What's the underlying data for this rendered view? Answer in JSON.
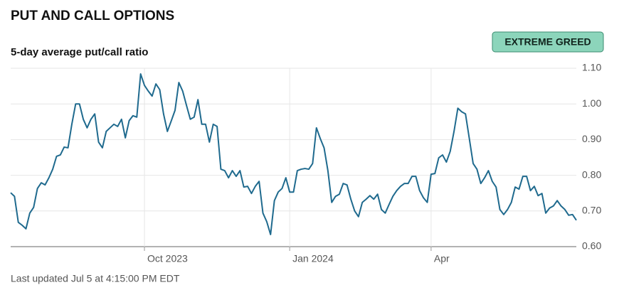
{
  "chart_data": {
    "type": "line",
    "title": "PUT AND CALL OPTIONS",
    "subtitle": "5-day average put/call ratio",
    "badge": "EXTREME GREED",
    "footnote": "Last updated Jul 5 at 4:15:00 PM EDT",
    "color": "#1f6a8e",
    "grid": true,
    "xlim": [
      0,
      148
    ],
    "xticks": [
      {
        "value": 35,
        "label": "Oct 2023"
      },
      {
        "value": 73,
        "label": "Jan 2024"
      },
      {
        "value": 110,
        "label": "Apr"
      }
    ],
    "ylim": [
      0.6,
      1.1
    ],
    "yticks": [
      {
        "value": 0.6,
        "label": "0.60"
      },
      {
        "value": 0.7,
        "label": "0.70"
      },
      {
        "value": 0.8,
        "label": "0.80"
      },
      {
        "value": 0.9,
        "label": "0.90"
      },
      {
        "value": 1.0,
        "label": "1.00"
      },
      {
        "value": 1.1,
        "label": "1.10"
      }
    ],
    "values": [
      0.751,
      0.741,
      0.668,
      0.66,
      0.65,
      0.694,
      0.71,
      0.763,
      0.779,
      0.773,
      0.793,
      0.817,
      0.853,
      0.857,
      0.879,
      0.877,
      0.943,
      1.0,
      1.0,
      0.957,
      0.933,
      0.957,
      0.972,
      0.893,
      0.877,
      0.923,
      0.933,
      0.943,
      0.937,
      0.957,
      0.905,
      0.953,
      0.967,
      0.963,
      1.084,
      1.052,
      1.036,
      1.022,
      1.056,
      1.04,
      0.972,
      0.923,
      0.952,
      0.982,
      1.06,
      1.036,
      0.996,
      0.957,
      0.963,
      1.012,
      0.943,
      0.943,
      0.893,
      0.943,
      0.937,
      0.817,
      0.813,
      0.793,
      0.813,
      0.797,
      0.813,
      0.767,
      0.769,
      0.749,
      0.769,
      0.783,
      0.694,
      0.67,
      0.634,
      0.729,
      0.753,
      0.763,
      0.793,
      0.753,
      0.753,
      0.813,
      0.817,
      0.819,
      0.817,
      0.833,
      0.933,
      0.903,
      0.877,
      0.813,
      0.724,
      0.741,
      0.747,
      0.777,
      0.773,
      0.733,
      0.7,
      0.684,
      0.724,
      0.733,
      0.743,
      0.733,
      0.747,
      0.704,
      0.694,
      0.718,
      0.741,
      0.757,
      0.769,
      0.777,
      0.777,
      0.797,
      0.797,
      0.757,
      0.737,
      0.724,
      0.803,
      0.805,
      0.849,
      0.857,
      0.837,
      0.867,
      0.923,
      0.988,
      0.978,
      0.972,
      0.903,
      0.833,
      0.817,
      0.777,
      0.793,
      0.813,
      0.783,
      0.767,
      0.704,
      0.69,
      0.704,
      0.724,
      0.767,
      0.761,
      0.797,
      0.797,
      0.757,
      0.769,
      0.743,
      0.749,
      0.694,
      0.708,
      0.714,
      0.729,
      0.714,
      0.704,
      0.688,
      0.69,
      0.674
    ]
  }
}
